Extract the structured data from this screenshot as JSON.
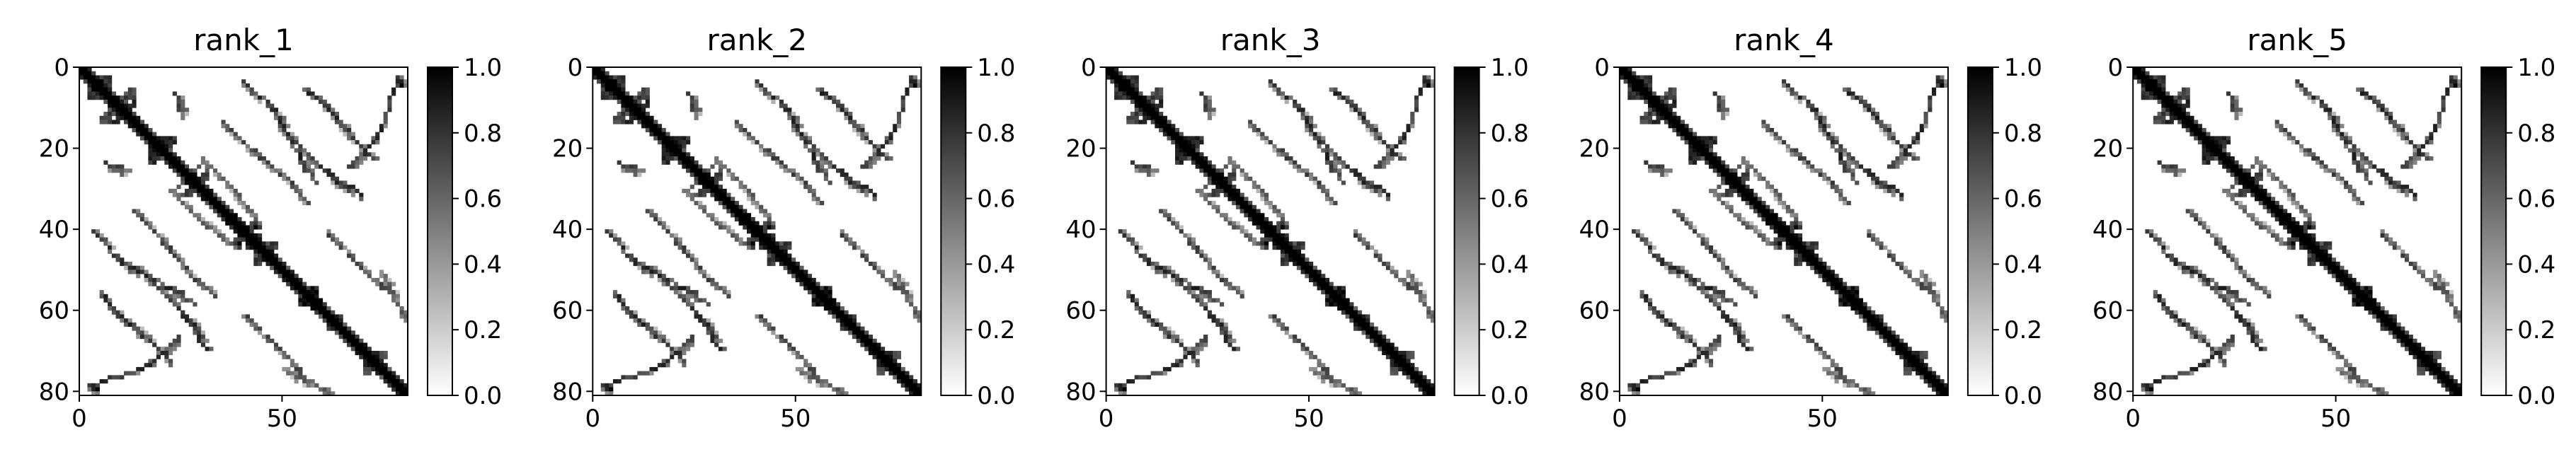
{
  "chart_data": [
    {
      "type": "heatmap",
      "title": "rank_1",
      "xlim": [
        0,
        81
      ],
      "ylim": [
        81,
        0
      ],
      "xticks": [
        "0",
        "50"
      ],
      "yticks": [
        "0",
        "20",
        "40",
        "60",
        "80"
      ],
      "colorbar": {
        "min": 0.0,
        "max": 1.0,
        "ticks": [
          "0.0",
          "0.2",
          "0.4",
          "0.6",
          "0.8",
          "1.0"
        ],
        "colormap": "gray_r"
      },
      "matrix_size": 81
    },
    {
      "type": "heatmap",
      "title": "rank_2",
      "xlim": [
        0,
        81
      ],
      "ylim": [
        81,
        0
      ],
      "xticks": [
        "0",
        "50"
      ],
      "yticks": [
        "0",
        "20",
        "40",
        "60",
        "80"
      ],
      "colorbar": {
        "min": 0.0,
        "max": 1.0,
        "ticks": [
          "0.0",
          "0.2",
          "0.4",
          "0.6",
          "0.8",
          "1.0"
        ],
        "colormap": "gray_r"
      },
      "matrix_size": 81
    },
    {
      "type": "heatmap",
      "title": "rank_3",
      "xlim": [
        0,
        81
      ],
      "ylim": [
        81,
        0
      ],
      "xticks": [
        "0",
        "50"
      ],
      "yticks": [
        "0",
        "20",
        "40",
        "60",
        "80"
      ],
      "colorbar": {
        "min": 0.0,
        "max": 1.0,
        "ticks": [
          "0.0",
          "0.2",
          "0.4",
          "0.6",
          "0.8",
          "1.0"
        ],
        "colormap": "gray_r"
      },
      "matrix_size": 81
    },
    {
      "type": "heatmap",
      "title": "rank_4",
      "xlim": [
        0,
        81
      ],
      "ylim": [
        81,
        0
      ],
      "xticks": [
        "0",
        "50"
      ],
      "yticks": [
        "0",
        "20",
        "40",
        "60",
        "80"
      ],
      "colorbar": {
        "min": 0.0,
        "max": 1.0,
        "ticks": [
          "0.0",
          "0.2",
          "0.4",
          "0.6",
          "0.8",
          "1.0"
        ],
        "colormap": "gray_r"
      },
      "matrix_size": 81
    },
    {
      "type": "heatmap",
      "title": "rank_5",
      "xlim": [
        0,
        81
      ],
      "ylim": [
        81,
        0
      ],
      "xticks": [
        "0",
        "50"
      ],
      "yticks": [
        "0",
        "20",
        "40",
        "60",
        "80"
      ],
      "colorbar": {
        "min": 0.0,
        "max": 1.0,
        "ticks": [
          "0.0",
          "0.2",
          "0.4",
          "0.6",
          "0.8",
          "1.0"
        ],
        "colormap": "gray_r"
      },
      "matrix_size": 81
    }
  ],
  "contact_features": {
    "diagonal_band_width": 1,
    "blocks": [
      {
        "i": [
          2,
          7
        ],
        "j": [
          2,
          7
        ],
        "v": 0.9
      },
      {
        "i": [
          5,
          9
        ],
        "j": [
          10,
          13
        ],
        "v": 0.9
      },
      {
        "i": [
          17,
          19
        ],
        "j": [
          20,
          23
        ],
        "v": 1.0
      },
      {
        "i": [
          24,
          27
        ],
        "j": [
          28,
          31
        ],
        "v": 0.8
      },
      {
        "i": [
          38,
          41
        ],
        "j": [
          40,
          44
        ],
        "v": 1.0
      },
      {
        "i": [
          43,
          47
        ],
        "j": [
          45,
          48
        ],
        "v": 0.9
      },
      {
        "i": [
          54,
          57
        ],
        "j": [
          55,
          58
        ],
        "v": 1.0
      },
      {
        "i": [
          61,
          63
        ],
        "j": [
          62,
          64
        ],
        "v": 0.9
      },
      {
        "i": [
          70,
          73
        ],
        "j": [
          72,
          75
        ],
        "v": 0.9
      }
    ],
    "curves": [
      {
        "points": [
          [
            3,
            40
          ],
          [
            7,
            44
          ],
          [
            10,
            48
          ],
          [
            15,
            50
          ],
          [
            20,
            55
          ],
          [
            25,
            60
          ],
          [
            30,
            66
          ]
        ],
        "v": 0.9
      },
      {
        "points": [
          [
            3,
            78
          ],
          [
            7,
            76
          ],
          [
            12,
            75
          ],
          [
            16,
            73
          ],
          [
            20,
            70
          ],
          [
            24,
            66
          ]
        ],
        "v": 0.9
      },
      {
        "points": [
          [
            8,
            60
          ],
          [
            12,
            63
          ],
          [
            16,
            66
          ],
          [
            20,
            70
          ]
        ],
        "v": 0.8
      },
      {
        "points": [
          [
            12,
            34
          ],
          [
            16,
            38
          ],
          [
            20,
            42
          ],
          [
            24,
            47
          ],
          [
            28,
            52
          ],
          [
            33,
            56
          ]
        ],
        "v": 0.8
      },
      {
        "points": [
          [
            22,
            30
          ],
          [
            26,
            34
          ],
          [
            30,
            38
          ],
          [
            34,
            41
          ],
          [
            38,
            44
          ]
        ],
        "v": 0.7
      },
      {
        "points": [
          [
            23,
            5
          ],
          [
            24,
            8
          ],
          [
            25,
            12
          ]
        ],
        "v": 0.8
      },
      {
        "points": [
          [
            27,
            62
          ],
          [
            29,
            66
          ],
          [
            31,
            69
          ]
        ],
        "v": 0.9
      },
      {
        "points": [
          [
            46,
            8
          ],
          [
            49,
            12
          ],
          [
            52,
            18
          ],
          [
            55,
            24
          ],
          [
            58,
            28
          ]
        ],
        "v": 0.9
      },
      {
        "points": [
          [
            55,
            5
          ],
          [
            59,
            8
          ],
          [
            63,
            12
          ],
          [
            68,
            18
          ],
          [
            72,
            22
          ]
        ],
        "v": 0.9
      },
      {
        "points": [
          [
            60,
            40
          ],
          [
            64,
            44
          ],
          [
            68,
            48
          ],
          [
            72,
            52
          ],
          [
            76,
            55
          ]
        ],
        "v": 0.8
      },
      {
        "points": [
          [
            78,
            2
          ],
          [
            79,
            4
          ]
        ],
        "v": 1.0
      },
      {
        "points": [
          [
            74,
            50
          ],
          [
            76,
            54
          ],
          [
            78,
            58
          ],
          [
            80,
            62
          ]
        ],
        "v": 0.7
      }
    ]
  }
}
